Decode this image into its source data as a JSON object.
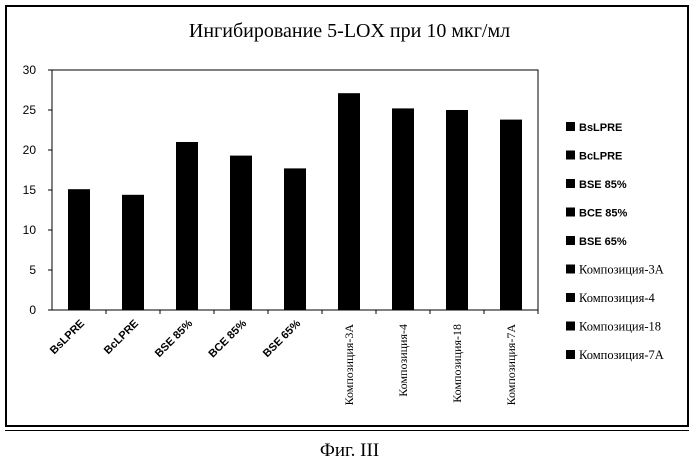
{
  "chart_data": {
    "type": "bar",
    "title": "Ингибирование 5-LOX при 10 мкг/мл",
    "caption": "Фиг. III",
    "categories": [
      "BsLPRE",
      "BcLPRE",
      "BSE 85%",
      "BCE 85%",
      "BSE 65%",
      "Композиция-3А",
      "Композиция-4",
      "Композиция-18",
      "Композиция-7А"
    ],
    "values": [
      15.1,
      14.4,
      21.0,
      19.3,
      17.7,
      27.1,
      25.2,
      25.0,
      23.8
    ],
    "ylim": [
      0,
      30
    ],
    "yticks": [
      "0",
      "5",
      "10",
      "15",
      "20",
      "25",
      "30"
    ],
    "legend_position": "right",
    "legend": [
      "BsLPRE",
      "BcLPRE",
      "BSE 85%",
      "BCE 85%",
      "BSE 65%",
      "Композиция-3А",
      "Композиция-4",
      "Композиция-18",
      "Композиция-7А"
    ],
    "bar_color": "#000000",
    "grid": false
  }
}
